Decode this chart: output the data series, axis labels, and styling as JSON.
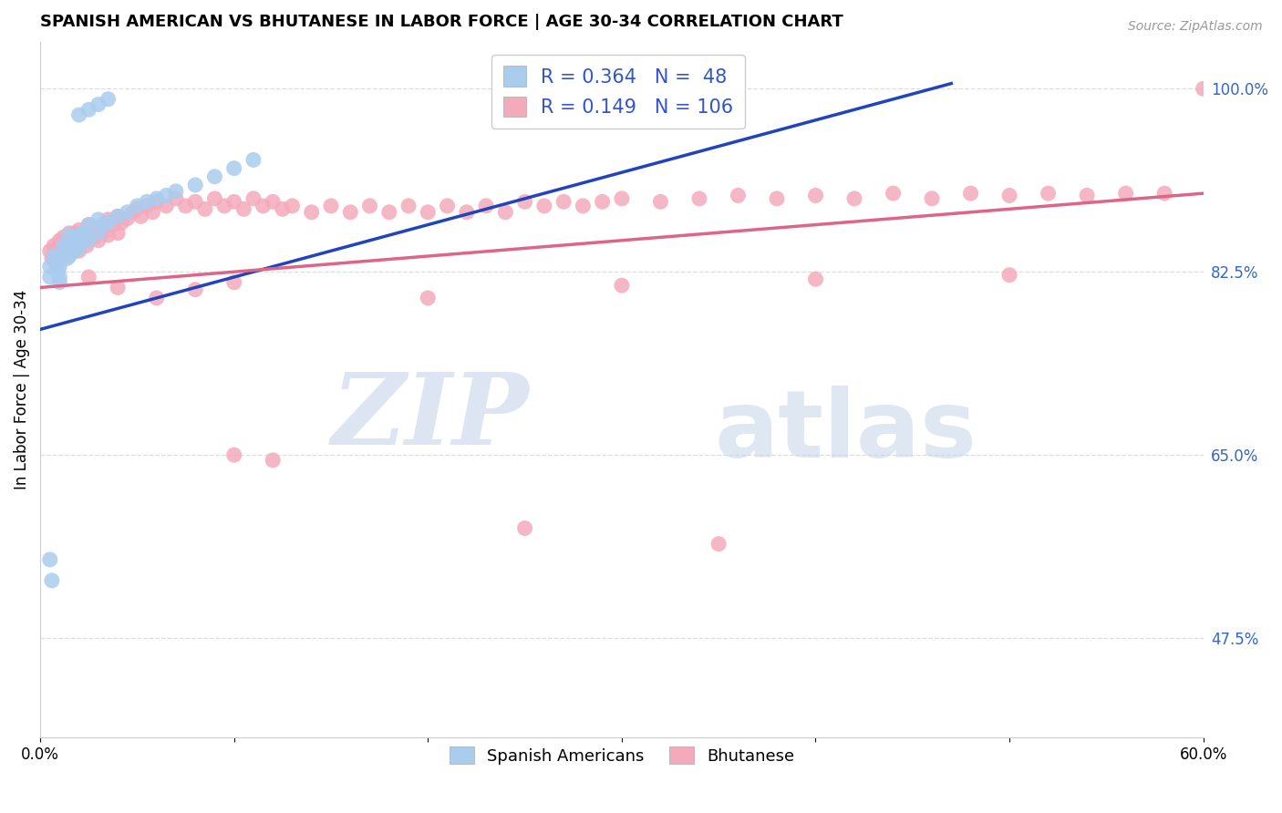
{
  "title": "SPANISH AMERICAN VS BHUTANESE IN LABOR FORCE | AGE 30-34 CORRELATION CHART",
  "source_text": "Source: ZipAtlas.com",
  "ylabel": "In Labor Force | Age 30-34",
  "xlim": [
    0.0,
    0.6
  ],
  "ylim": [
    0.38,
    1.045
  ],
  "xticks": [
    0.0,
    0.1,
    0.2,
    0.3,
    0.4,
    0.5,
    0.6
  ],
  "xtick_labels": [
    "0.0%",
    "",
    "",
    "",
    "",
    "",
    "60.0%"
  ],
  "ytick_values_right": [
    1.0,
    0.825,
    0.65,
    0.475
  ],
  "ytick_labels_right": [
    "100.0%",
    "82.5%",
    "65.0%",
    "47.5%"
  ],
  "r_blue": 0.364,
  "n_blue": 48,
  "r_pink": 0.149,
  "n_pink": 106,
  "blue_scatter_color": "#aaccee",
  "pink_scatter_color": "#f4aabb",
  "blue_line_color": "#2244bb",
  "pink_line_color": "#dd6688",
  "watermark_color": "#c8d8f0",
  "grid_color": "#dddddd",
  "blue_x": [
    0.005,
    0.005,
    0.007,
    0.008,
    0.009,
    0.01,
    0.01,
    0.01,
    0.01,
    0.012,
    0.012,
    0.013,
    0.014,
    0.015,
    0.015,
    0.015,
    0.016,
    0.017,
    0.018,
    0.018,
    0.019,
    0.02,
    0.02,
    0.022,
    0.023,
    0.025,
    0.025,
    0.03,
    0.03,
    0.032,
    0.035,
    0.04,
    0.045,
    0.05,
    0.055,
    0.06,
    0.065,
    0.07,
    0.08,
    0.09,
    0.1,
    0.11,
    0.02,
    0.025,
    0.03,
    0.035,
    0.005,
    0.006
  ],
  "blue_y": [
    0.83,
    0.82,
    0.84,
    0.835,
    0.825,
    0.84,
    0.83,
    0.82,
    0.815,
    0.85,
    0.84,
    0.845,
    0.838,
    0.86,
    0.85,
    0.84,
    0.855,
    0.848,
    0.858,
    0.845,
    0.852,
    0.86,
    0.848,
    0.862,
    0.857,
    0.87,
    0.855,
    0.875,
    0.862,
    0.87,
    0.872,
    0.878,
    0.882,
    0.888,
    0.892,
    0.895,
    0.898,
    0.902,
    0.908,
    0.916,
    0.924,
    0.932,
    0.975,
    0.98,
    0.985,
    0.99,
    0.55,
    0.53
  ],
  "pink_x": [
    0.005,
    0.006,
    0.007,
    0.008,
    0.008,
    0.009,
    0.01,
    0.01,
    0.01,
    0.011,
    0.012,
    0.012,
    0.013,
    0.014,
    0.015,
    0.015,
    0.016,
    0.017,
    0.018,
    0.018,
    0.019,
    0.02,
    0.02,
    0.02,
    0.022,
    0.023,
    0.024,
    0.025,
    0.025,
    0.026,
    0.028,
    0.03,
    0.03,
    0.032,
    0.035,
    0.035,
    0.038,
    0.04,
    0.04,
    0.042,
    0.045,
    0.048,
    0.05,
    0.052,
    0.055,
    0.058,
    0.06,
    0.065,
    0.07,
    0.075,
    0.08,
    0.085,
    0.09,
    0.095,
    0.1,
    0.105,
    0.11,
    0.115,
    0.12,
    0.125,
    0.13,
    0.14,
    0.15,
    0.16,
    0.17,
    0.18,
    0.19,
    0.2,
    0.21,
    0.22,
    0.23,
    0.24,
    0.25,
    0.26,
    0.27,
    0.28,
    0.29,
    0.3,
    0.32,
    0.34,
    0.36,
    0.38,
    0.4,
    0.42,
    0.44,
    0.46,
    0.48,
    0.5,
    0.52,
    0.54,
    0.56,
    0.58,
    0.6,
    0.025,
    0.04,
    0.06,
    0.08,
    0.1,
    0.2,
    0.3,
    0.4,
    0.5,
    0.1,
    0.12,
    0.25,
    0.35
  ],
  "pink_y": [
    0.845,
    0.838,
    0.85,
    0.842,
    0.832,
    0.848,
    0.855,
    0.845,
    0.835,
    0.85,
    0.858,
    0.848,
    0.853,
    0.847,
    0.862,
    0.852,
    0.858,
    0.85,
    0.862,
    0.852,
    0.855,
    0.865,
    0.855,
    0.845,
    0.862,
    0.856,
    0.85,
    0.87,
    0.858,
    0.862,
    0.858,
    0.868,
    0.855,
    0.862,
    0.875,
    0.86,
    0.87,
    0.878,
    0.862,
    0.872,
    0.876,
    0.882,
    0.885,
    0.878,
    0.888,
    0.882,
    0.892,
    0.888,
    0.895,
    0.888,
    0.892,
    0.885,
    0.895,
    0.888,
    0.892,
    0.885,
    0.895,
    0.888,
    0.892,
    0.885,
    0.888,
    0.882,
    0.888,
    0.882,
    0.888,
    0.882,
    0.888,
    0.882,
    0.888,
    0.882,
    0.888,
    0.882,
    0.892,
    0.888,
    0.892,
    0.888,
    0.892,
    0.895,
    0.892,
    0.895,
    0.898,
    0.895,
    0.898,
    0.895,
    0.9,
    0.895,
    0.9,
    0.898,
    0.9,
    0.898,
    0.9,
    0.9,
    1.0,
    0.82,
    0.81,
    0.8,
    0.808,
    0.815,
    0.8,
    0.812,
    0.818,
    0.822,
    0.65,
    0.645,
    0.58,
    0.565
  ]
}
